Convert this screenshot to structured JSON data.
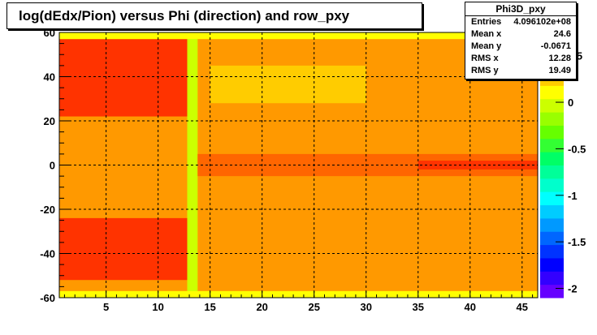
{
  "title": "log(dEdx/Pion) versus Phi (direction) and row_pxy",
  "stats": {
    "name": "Phi3D_pxy",
    "rows": [
      {
        "label": "Entries",
        "value": "4.096102e+08"
      },
      {
        "label": "Mean x",
        "value": "24.6"
      },
      {
        "label": "Mean y",
        "value": "-0.0671"
      },
      {
        "label": "RMS x",
        "value": "12.28"
      },
      {
        "label": "RMS y",
        "value": "19.49"
      }
    ]
  },
  "chart_data": {
    "type": "heatmap",
    "title": "log(dEdx/Pion) versus Phi (direction) and row_pxy",
    "x_range": [
      0.5,
      46.5
    ],
    "y_range": [
      -60,
      60
    ],
    "x_ticks": [
      5,
      10,
      15,
      20,
      25,
      30,
      35,
      40,
      45
    ],
    "y_ticks": [
      -60,
      -40,
      -20,
      0,
      20,
      40,
      60
    ],
    "z_range": [
      -2.1,
      0.75
    ],
    "z_ticks": [
      -2,
      -1.5,
      -1,
      -0.5,
      0,
      0.5
    ],
    "grid": true,
    "palette": [
      "#6600ff",
      "#3300ff",
      "#0000ff",
      "#0033ff",
      "#0066ff",
      "#0099ff",
      "#00ccff",
      "#00ffff",
      "#00ffcc",
      "#00ff99",
      "#00ff66",
      "#33ff33",
      "#66ff00",
      "#99ff00",
      "#ccff00",
      "#ffff00",
      "#ffcc00",
      "#ff9900",
      "#ff6600",
      "#ff3300"
    ],
    "regions": [
      {
        "desc": "background",
        "x": [
          0.5,
          46.5
        ],
        "y": [
          -60,
          60
        ],
        "z": 0.45
      },
      {
        "desc": "upper-left high",
        "x": [
          0.5,
          13
        ],
        "y": [
          22,
          57
        ],
        "z": 0.72
      },
      {
        "desc": "lower-left high",
        "x": [
          0.5,
          13
        ],
        "y": [
          -52,
          -24
        ],
        "z": 0.72
      },
      {
        "desc": "column 13 low",
        "x": [
          12.8,
          13.8
        ],
        "y": [
          -59,
          58
        ],
        "z": -0.05
      },
      {
        "desc": "central band",
        "x": [
          13.8,
          46.5
        ],
        "y": [
          -5,
          5
        ],
        "z": 0.6
      },
      {
        "desc": "central core",
        "x": [
          35,
          46.5
        ],
        "y": [
          -2,
          2
        ],
        "z": 0.72
      },
      {
        "desc": "upper green patch",
        "x": [
          15,
          30
        ],
        "y": [
          28,
          45
        ],
        "z": 0.32
      },
      {
        "desc": "top edge",
        "x": [
          0.5,
          46.5
        ],
        "y": [
          57,
          60
        ],
        "z": 0.05
      },
      {
        "desc": "bottom edge",
        "x": [
          0.5,
          46.5
        ],
        "y": [
          -60,
          -57
        ],
        "z": 0.15
      }
    ]
  }
}
